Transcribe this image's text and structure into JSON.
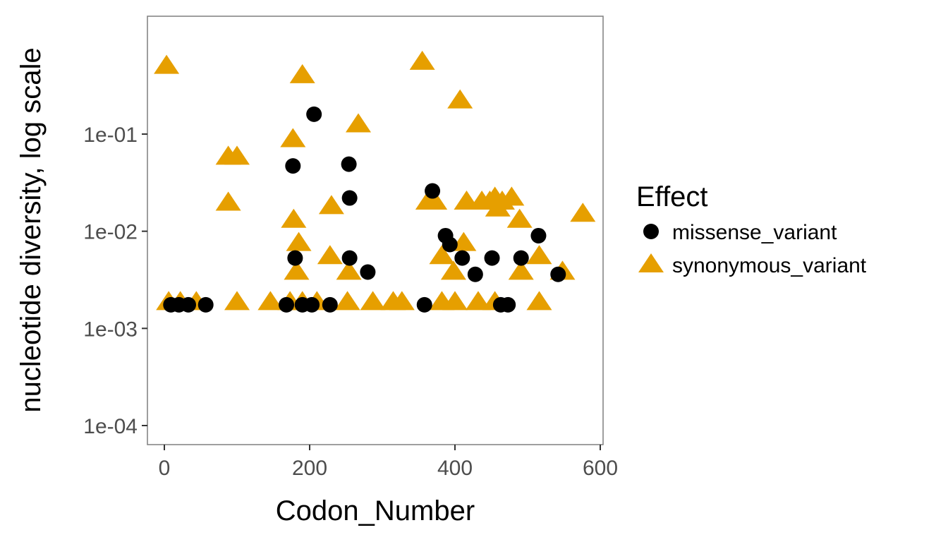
{
  "chart_data": {
    "type": "scatter",
    "xlabel": "Codon_Number",
    "ylabel": "nucleotide diversity, log scale",
    "y_scale": "log10",
    "xlim": [
      -25,
      600
    ],
    "ylim": [
      6e-05,
      1.3
    ],
    "x_ticks": [
      0,
      200,
      400,
      600
    ],
    "x_tick_labels": [
      "0",
      "200",
      "400",
      "600"
    ],
    "y_ticks": [
      0.0001,
      0.001,
      0.01,
      0.1
    ],
    "y_tick_labels": [
      "1e-04",
      "1e-03",
      "1e-02",
      "1e-01"
    ],
    "grid": false,
    "legend": {
      "title": "Effect",
      "position": "right"
    },
    "series": [
      {
        "name": "missense_variant",
        "marker": "circle",
        "color": "#000000",
        "points": [
          [
            9,
            0.00175
          ],
          [
            20,
            0.00175
          ],
          [
            33,
            0.00175
          ],
          [
            57,
            0.00175
          ],
          [
            177,
            0.047
          ],
          [
            180,
            0.0053
          ],
          [
            168,
            0.00175
          ],
          [
            190,
            0.00175
          ],
          [
            203,
            0.00175
          ],
          [
            206,
            0.16
          ],
          [
            228,
            0.00175
          ],
          [
            254,
            0.049
          ],
          [
            255,
            0.022
          ],
          [
            255,
            0.0053
          ],
          [
            280,
            0.0038
          ],
          [
            358,
            0.00175
          ],
          [
            369,
            0.026
          ],
          [
            387,
            0.009
          ],
          [
            393,
            0.0073
          ],
          [
            410,
            0.0053
          ],
          [
            428,
            0.0036
          ],
          [
            451,
            0.0053
          ],
          [
            463,
            0.00175
          ],
          [
            473,
            0.00175
          ],
          [
            491,
            0.0053
          ],
          [
            515,
            0.009
          ],
          [
            542,
            0.0036
          ]
        ]
      },
      {
        "name": "synonymous_variant",
        "marker": "triangle",
        "color": "#E69F00",
        "points": [
          [
            3,
            0.5
          ],
          [
            6,
            0.00185
          ],
          [
            22,
            0.00185
          ],
          [
            44,
            0.00185
          ],
          [
            88,
            0.0195
          ],
          [
            100,
            0.00185
          ],
          [
            88,
            0.058
          ],
          [
            100,
            0.058
          ],
          [
            146,
            0.00185
          ],
          [
            173,
            0.00185
          ],
          [
            190,
            0.00185
          ],
          [
            210,
            0.00185
          ],
          [
            177,
            0.088
          ],
          [
            178,
            0.013
          ],
          [
            185,
            0.0075
          ],
          [
            182,
            0.0038
          ],
          [
            190,
            0.4
          ],
          [
            228,
            0.0055
          ],
          [
            230,
            0.018
          ],
          [
            252,
            0.00185
          ],
          [
            254,
            0.0038
          ],
          [
            267,
            0.125
          ],
          [
            287,
            0.00185
          ],
          [
            315,
            0.00185
          ],
          [
            327,
            0.00185
          ],
          [
            355,
            0.55
          ],
          [
            363,
            0.02
          ],
          [
            372,
            0.02
          ],
          [
            382,
            0.00185
          ],
          [
            382,
            0.0055
          ],
          [
            398,
            0.0038
          ],
          [
            400,
            0.00185
          ],
          [
            407,
            0.22
          ],
          [
            412,
            0.0075
          ],
          [
            416,
            0.02
          ],
          [
            432,
            0.00185
          ],
          [
            437,
            0.02
          ],
          [
            448,
            0.02
          ],
          [
            455,
            0.00185
          ],
          [
            455,
            0.022
          ],
          [
            459,
            0.017
          ],
          [
            465,
            0.02
          ],
          [
            478,
            0.022
          ],
          [
            489,
            0.013
          ],
          [
            491,
            0.0038
          ],
          [
            516,
            0.00185
          ],
          [
            516,
            0.0055
          ],
          [
            548,
            0.0038
          ],
          [
            576,
            0.015
          ]
        ]
      }
    ]
  }
}
